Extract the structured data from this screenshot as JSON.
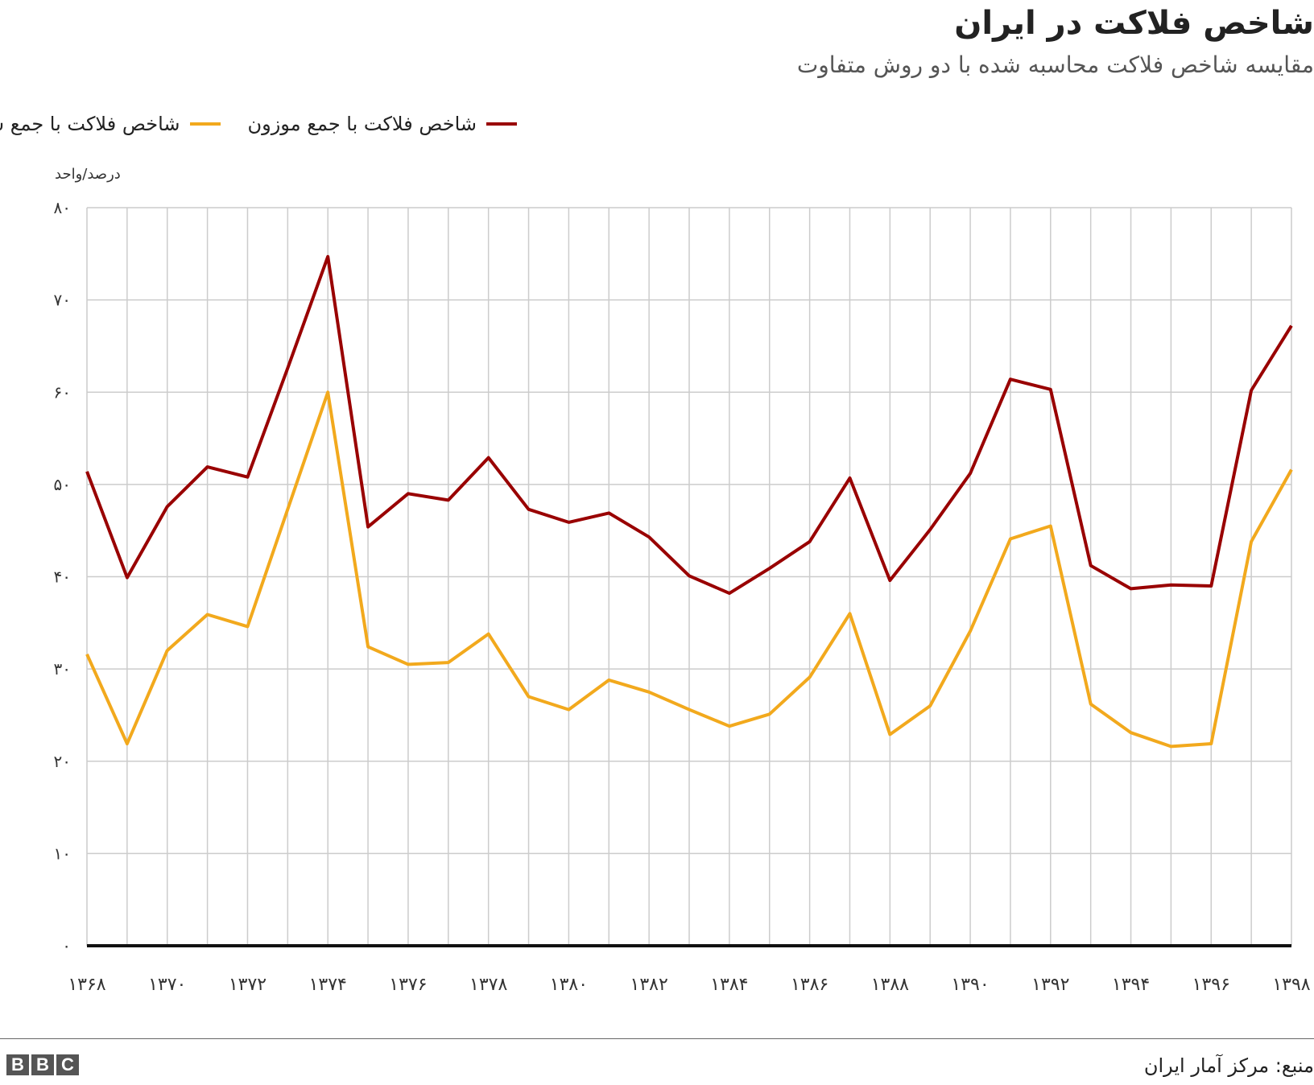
{
  "chart_data": {
    "type": "line",
    "title": "شاخص فلاکت در ایران",
    "subtitle": "مقایسه شاخص فلاکت محاسبه شده با دو روش متفاوت",
    "unit_label": "درصد/واحد",
    "source": "منبع: مرکز آمار ایران",
    "x": [
      1368,
      1369,
      1370,
      1371,
      1372,
      1373,
      1374,
      1375,
      1376,
      1377,
      1378,
      1379,
      1380,
      1381,
      1382,
      1383,
      1384,
      1385,
      1386,
      1387,
      1388,
      1389,
      1390,
      1391,
      1392,
      1393,
      1394,
      1395,
      1396,
      1397,
      1398
    ],
    "x_tick_values": [
      1368,
      1370,
      1372,
      1374,
      1376,
      1378,
      1380,
      1382,
      1384,
      1386,
      1388,
      1390,
      1392,
      1394,
      1396,
      1398
    ],
    "x_tick_labels": [
      "۱۳۶۸",
      "۱۳۷۰",
      "۱۳۷۲",
      "۱۳۷۴",
      "۱۳۷۶",
      "۱۳۷۸",
      "۱۳۸۰",
      "۱۳۸۲",
      "۱۳۸۴",
      "۱۳۸۶",
      "۱۳۸۸",
      "۱۳۹۰",
      "۱۳۹۲",
      "۱۳۹۴",
      "۱۳۹۶",
      "۱۳۹۸"
    ],
    "y_tick_values": [
      0,
      10,
      20,
      30,
      40,
      50,
      60,
      70,
      80
    ],
    "y_tick_labels": [
      "۰",
      "۱۰",
      "۲۰",
      "۳۰",
      "۴۰",
      "۵۰",
      "۶۰",
      "۷۰",
      "۸۰"
    ],
    "ylim": [
      0,
      80
    ],
    "grid": true,
    "legend_position": "top",
    "series": [
      {
        "name": "شاخص فلاکت با جمع موزون",
        "color": "#990000",
        "values": [
          51.4,
          39.9,
          47.6,
          51.9,
          50.8,
          62.6,
          74.7,
          45.4,
          49.0,
          48.3,
          52.9,
          47.3,
          45.9,
          46.9,
          44.3,
          40.1,
          38.2,
          40.9,
          43.8,
          50.7,
          39.6,
          45.1,
          51.2,
          61.4,
          60.3,
          41.2,
          38.7,
          39.1,
          39.0,
          60.2,
          67.2
        ]
      },
      {
        "name": "شاخص فلاکت با جمع ساده",
        "color": "#f2a91d",
        "values": [
          31.6,
          21.9,
          32.0,
          35.9,
          34.6,
          47.3,
          60.0,
          32.4,
          30.5,
          30.7,
          33.8,
          27.0,
          25.6,
          28.8,
          27.5,
          25.6,
          23.8,
          25.1,
          29.1,
          36.0,
          22.9,
          26.0,
          34.1,
          44.1,
          45.5,
          26.2,
          23.1,
          21.6,
          21.9,
          43.8,
          51.6
        ]
      }
    ]
  }
}
